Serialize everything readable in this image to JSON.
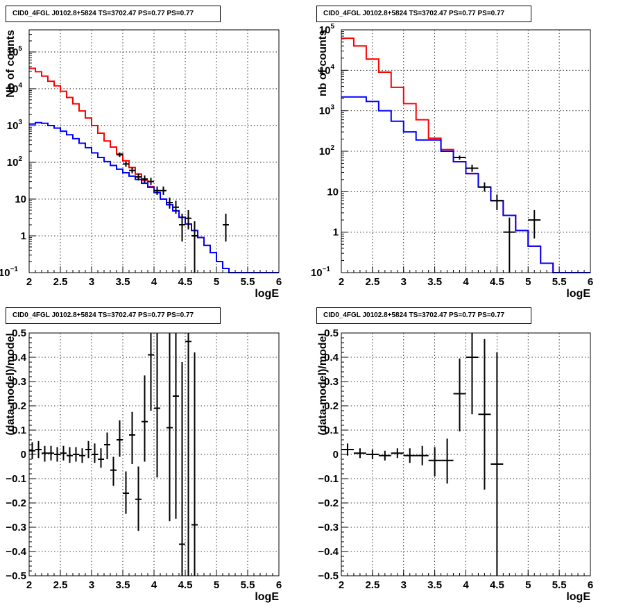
{
  "colors": {
    "data": "#000000",
    "red_model": "#ff0000",
    "blue_model": "#0000ff",
    "grid": "#000000",
    "frame": "#000000"
  },
  "chart_data": [
    {
      "panel": "top-left",
      "type": "histogram",
      "title": "CID0_4FGL J0102.8+5824 TS=3702.47 PS=0.77 PS=0.77",
      "xlabel": "logE",
      "ylabel": "Nb of counts",
      "log_y": true,
      "grid": true,
      "xlim": [
        2,
        6
      ],
      "ylim": [
        0.1,
        400000
      ],
      "x_ticks": [
        "2",
        "2.5",
        "3",
        "3.5",
        "4",
        "4.5",
        "5",
        "5.5",
        "6"
      ],
      "y_ticks": [
        {
          "v": 0.1,
          "label": "10",
          "sup": "−1"
        },
        {
          "v": 1,
          "label": "1",
          "sup": ""
        },
        {
          "v": 10,
          "label": "10",
          "sup": ""
        },
        {
          "v": 100,
          "label": "10",
          "sup": "2"
        },
        {
          "v": 1000,
          "label": "10",
          "sup": "3"
        },
        {
          "v": 10000,
          "label": "10",
          "sup": "4"
        },
        {
          "v": 100000,
          "label": "10",
          "sup": "5"
        }
      ],
      "bin_edges": [
        2.0,
        2.1,
        2.2,
        2.3,
        2.4,
        2.5,
        2.6,
        2.7,
        2.8,
        2.9,
        3.0,
        3.1,
        3.2,
        3.3,
        3.4,
        3.5,
        3.6,
        3.7,
        3.8,
        3.9,
        4.0,
        4.1,
        4.2,
        4.3,
        4.4,
        4.5,
        4.6,
        4.7,
        4.8,
        4.9,
        5.0,
        5.1,
        5.2,
        5.3,
        5.4,
        5.5,
        5.6,
        5.7,
        5.8,
        5.9,
        6.0
      ],
      "series": [
        {
          "color_key": "red_model",
          "values": [
            36000,
            29000,
            22000,
            16000,
            12000,
            8500,
            5800,
            3900,
            2500,
            1600,
            1000,
            620,
            380,
            260,
            170,
            110,
            72,
            48,
            32,
            22,
            15,
            10,
            7,
            4.8,
            3.2,
            2.1,
            1.4,
            0.9,
            0.55,
            0.35,
            0.2,
            0.13,
            0.1,
            0.1,
            0.1,
            0.1,
            0.1,
            0.1,
            0.1,
            0.1
          ]
        },
        {
          "color_key": "blue_model",
          "values": [
            1100,
            1200,
            1150,
            1000,
            850,
            700,
            560,
            440,
            330,
            250,
            180,
            135,
            105,
            82,
            65,
            52,
            42,
            34,
            27,
            21,
            15,
            10,
            7,
            4.8,
            3.2,
            2.1,
            1.4,
            0.9,
            0.55,
            0.35,
            0.2,
            0.13,
            0.1,
            0.1,
            0.1,
            0.1,
            0.1,
            0.1,
            0.1,
            0.1
          ]
        }
      ],
      "points": [
        {
          "x": 3.45,
          "y": 160,
          "xerr": 0.05,
          "lo": 140,
          "hi": 185
        },
        {
          "x": 3.55,
          "y": 90,
          "xerr": 0.05,
          "lo": 75,
          "hi": 105
        },
        {
          "x": 3.65,
          "y": 60,
          "xerr": 0.05,
          "lo": 50,
          "hi": 72
        },
        {
          "x": 3.75,
          "y": 40,
          "xerr": 0.05,
          "lo": 32,
          "hi": 50
        },
        {
          "x": 3.85,
          "y": 35,
          "xerr": 0.05,
          "lo": 28,
          "hi": 44
        },
        {
          "x": 3.95,
          "y": 30,
          "xerr": 0.05,
          "lo": 24,
          "hi": 38
        },
        {
          "x": 4.05,
          "y": 17,
          "xerr": 0.05,
          "lo": 13,
          "hi": 22
        },
        {
          "x": 4.15,
          "y": 17,
          "xerr": 0.05,
          "lo": 13,
          "hi": 22
        },
        {
          "x": 4.25,
          "y": 8,
          "xerr": 0.05,
          "lo": 5.5,
          "hi": 11
        },
        {
          "x": 4.35,
          "y": 6,
          "xerr": 0.05,
          "lo": 4,
          "hi": 9
        },
        {
          "x": 4.45,
          "y": 2,
          "xerr": 0.05,
          "lo": 0.7,
          "hi": 4
        },
        {
          "x": 4.55,
          "y": 3,
          "xerr": 0.05,
          "lo": 1.5,
          "hi": 5
        },
        {
          "x": 4.65,
          "y": 1,
          "xerr": 0.05,
          "lo": 0.1,
          "hi": 2.5
        },
        {
          "x": 5.15,
          "y": 2,
          "xerr": 0.05,
          "lo": 0.7,
          "hi": 4
        }
      ]
    },
    {
      "panel": "top-right",
      "type": "histogram",
      "title": "CID0_4FGL J0102.8+5824 TS=3702.47 PS=0.77 PS=0.77",
      "xlabel": "logE",
      "ylabel": "nb of counts",
      "log_y": true,
      "grid": true,
      "xlim": [
        2,
        6
      ],
      "ylim": [
        0.1,
        100000
      ],
      "x_ticks": [
        "2",
        "2.5",
        "3",
        "3.5",
        "4",
        "4.5",
        "5",
        "5.5",
        "6"
      ],
      "y_ticks": [
        {
          "v": 0.1,
          "label": "10",
          "sup": "−1"
        },
        {
          "v": 1,
          "label": "1",
          "sup": ""
        },
        {
          "v": 10,
          "label": "10",
          "sup": ""
        },
        {
          "v": 100,
          "label": "10",
          "sup": "2"
        },
        {
          "v": 1000,
          "label": "10",
          "sup": "3"
        },
        {
          "v": 10000,
          "label": "10",
          "sup": "4"
        },
        {
          "v": 100000,
          "label": "10",
          "sup": "5"
        }
      ],
      "bin_edges": [
        2.0,
        2.2,
        2.4,
        2.6,
        2.8,
        3.0,
        3.2,
        3.4,
        3.6,
        3.8,
        4.0,
        4.2,
        4.4,
        4.6,
        4.8,
        5.0,
        5.2,
        5.4,
        5.6,
        5.8,
        6.0
      ],
      "series": [
        {
          "color_key": "red_model",
          "values": [
            62000,
            40000,
            19000,
            9000,
            3800,
            1500,
            600,
            210,
            110,
            55,
            28,
            13,
            6,
            2.6,
            1.1,
            0.45,
            0.17,
            0.1,
            0.1,
            0.1
          ]
        },
        {
          "color_key": "blue_model",
          "values": [
            2200,
            2200,
            1700,
            1000,
            550,
            300,
            190,
            190,
            100,
            55,
            28,
            13,
            6,
            2.6,
            1.1,
            0.45,
            0.17,
            0.1,
            0.1,
            0.1
          ]
        }
      ],
      "points": [
        {
          "x": 3.9,
          "y": 70,
          "xerr": 0.1,
          "lo": 62,
          "hi": 78
        },
        {
          "x": 4.1,
          "y": 38,
          "xerr": 0.1,
          "lo": 31,
          "hi": 46
        },
        {
          "x": 4.3,
          "y": 13,
          "xerr": 0.1,
          "lo": 10,
          "hi": 17
        },
        {
          "x": 4.5,
          "y": 6,
          "xerr": 0.1,
          "lo": 3.5,
          "hi": 8.5
        },
        {
          "x": 4.7,
          "y": 1,
          "xerr": 0.1,
          "lo": 0.1,
          "hi": 2.3
        },
        {
          "x": 5.1,
          "y": 2,
          "xerr": 0.1,
          "lo": 0.7,
          "hi": 3.5
        }
      ]
    },
    {
      "panel": "bottom-left",
      "type": "scatter",
      "title": "CID0_4FGL J0102.8+5824 TS=3702.47 PS=0.77 PS=0.77",
      "xlabel": "logE",
      "ylabel": "(data-model)/model",
      "log_y": false,
      "grid": true,
      "xlim": [
        2,
        6
      ],
      "ylim": [
        -0.5,
        0.5
      ],
      "x_ticks": [
        "2",
        "2.5",
        "3",
        "3.5",
        "4",
        "4.5",
        "5",
        "5.5",
        "6"
      ],
      "y_ticks": [
        {
          "v": -0.5,
          "label": "−0.5"
        },
        {
          "v": -0.4,
          "label": "−0.4"
        },
        {
          "v": -0.3,
          "label": "−0.3"
        },
        {
          "v": -0.2,
          "label": "−0.2"
        },
        {
          "v": -0.1,
          "label": "−0.1"
        },
        {
          "v": 0,
          "label": "0"
        },
        {
          "v": 0.1,
          "label": "0.1"
        },
        {
          "v": 0.2,
          "label": "0.2"
        },
        {
          "v": 0.3,
          "label": "0.3"
        },
        {
          "v": 0.4,
          "label": "0.4"
        },
        {
          "v": 0.5,
          "label": "0.5"
        }
      ],
      "points": [
        {
          "x": 2.05,
          "y": 0.015,
          "xerr": 0.05,
          "lo": -0.02,
          "hi": 0.05
        },
        {
          "x": 2.15,
          "y": 0.02,
          "xerr": 0.05,
          "lo": -0.015,
          "hi": 0.055
        },
        {
          "x": 2.25,
          "y": 0.005,
          "xerr": 0.05,
          "lo": -0.03,
          "hi": 0.035
        },
        {
          "x": 2.35,
          "y": 0.005,
          "xerr": 0.05,
          "lo": -0.025,
          "hi": 0.035
        },
        {
          "x": 2.45,
          "y": 0.0,
          "xerr": 0.05,
          "lo": -0.03,
          "hi": 0.03
        },
        {
          "x": 2.55,
          "y": 0.005,
          "xerr": 0.05,
          "lo": -0.025,
          "hi": 0.035
        },
        {
          "x": 2.65,
          "y": -0.005,
          "xerr": 0.05,
          "lo": -0.035,
          "hi": 0.03
        },
        {
          "x": 2.75,
          "y": 0.0,
          "xerr": 0.05,
          "lo": -0.03,
          "hi": 0.03
        },
        {
          "x": 2.85,
          "y": -0.005,
          "xerr": 0.05,
          "lo": -0.035,
          "hi": 0.025
        },
        {
          "x": 2.95,
          "y": 0.02,
          "xerr": 0.05,
          "lo": -0.015,
          "hi": 0.055
        },
        {
          "x": 3.05,
          "y": 0.0,
          "xerr": 0.05,
          "lo": -0.035,
          "hi": 0.045
        },
        {
          "x": 3.15,
          "y": -0.02,
          "xerr": 0.05,
          "lo": -0.055,
          "hi": 0.025
        },
        {
          "x": 3.25,
          "y": 0.04,
          "xerr": 0.05,
          "lo": -0.02,
          "hi": 0.09
        },
        {
          "x": 3.35,
          "y": -0.065,
          "xerr": 0.05,
          "lo": -0.13,
          "hi": -0.01
        },
        {
          "x": 3.45,
          "y": 0.06,
          "xerr": 0.05,
          "lo": -0.01,
          "hi": 0.14
        },
        {
          "x": 3.55,
          "y": -0.16,
          "xerr": 0.05,
          "lo": -0.245,
          "hi": -0.07
        },
        {
          "x": 3.65,
          "y": 0.08,
          "xerr": 0.05,
          "lo": -0.04,
          "hi": 0.175
        },
        {
          "x": 3.75,
          "y": -0.185,
          "xerr": 0.05,
          "lo": -0.315,
          "hi": -0.05
        },
        {
          "x": 3.85,
          "y": 0.135,
          "xerr": 0.05,
          "lo": -0.03,
          "hi": 0.325
        },
        {
          "x": 3.95,
          "y": 0.41,
          "xerr": 0.05,
          "lo": 0.18,
          "hi": 0.5
        },
        {
          "x": 4.05,
          "y": 0.19,
          "xerr": 0.05,
          "lo": -0.095,
          "hi": 0.5
        },
        {
          "x": 4.25,
          "y": 0.11,
          "xerr": 0.05,
          "lo": -0.275,
          "hi": 0.5
        },
        {
          "x": 4.35,
          "y": 0.24,
          "xerr": 0.05,
          "lo": -0.265,
          "hi": 0.5
        },
        {
          "x": 4.45,
          "y": -0.37,
          "xerr": 0.05,
          "lo": -0.5,
          "hi": 0.38
        },
        {
          "x": 4.55,
          "y": 0.465,
          "xerr": 0.05,
          "lo": -0.5,
          "hi": 0.5
        },
        {
          "x": 4.65,
          "y": -0.29,
          "xerr": 0.05,
          "lo": -0.5,
          "hi": 0.42
        }
      ]
    },
    {
      "panel": "bottom-right",
      "type": "scatter",
      "title": "CID0_4FGL J0102.8+5824 TS=3702.47 PS=0.77 PS=0.77",
      "xlabel": "logE",
      "ylabel": "(data-model)/model",
      "log_y": false,
      "grid": true,
      "xlim": [
        2,
        6
      ],
      "ylim": [
        -0.5,
        0.5
      ],
      "x_ticks": [
        "2",
        "2.5",
        "3",
        "3.5",
        "4",
        "4.5",
        "5",
        "5.5",
        "6"
      ],
      "y_ticks": [
        {
          "v": -0.5,
          "label": "−0.5"
        },
        {
          "v": -0.4,
          "label": "−0.4"
        },
        {
          "v": -0.3,
          "label": "−0.3"
        },
        {
          "v": -0.2,
          "label": "−0.2"
        },
        {
          "v": -0.1,
          "label": "−0.1"
        },
        {
          "v": 0,
          "label": "0"
        },
        {
          "v": 0.1,
          "label": "0.1"
        },
        {
          "v": 0.2,
          "label": "0.2"
        },
        {
          "v": 0.3,
          "label": "0.3"
        },
        {
          "v": 0.4,
          "label": "0.4"
        },
        {
          "v": 0.5,
          "label": "0.5"
        }
      ],
      "points": [
        {
          "x": 2.1,
          "y": 0.02,
          "xerr": 0.1,
          "lo": -0.005,
          "hi": 0.045
        },
        {
          "x": 2.3,
          "y": 0.005,
          "xerr": 0.1,
          "lo": -0.015,
          "hi": 0.025
        },
        {
          "x": 2.5,
          "y": 0.0,
          "xerr": 0.1,
          "lo": -0.02,
          "hi": 0.02
        },
        {
          "x": 2.7,
          "y": -0.005,
          "xerr": 0.1,
          "lo": -0.025,
          "hi": 0.015
        },
        {
          "x": 2.9,
          "y": 0.005,
          "xerr": 0.1,
          "lo": -0.015,
          "hi": 0.025
        },
        {
          "x": 3.1,
          "y": -0.005,
          "xerr": 0.1,
          "lo": -0.035,
          "hi": 0.025
        },
        {
          "x": 3.3,
          "y": -0.005,
          "xerr": 0.1,
          "lo": -0.045,
          "hi": 0.035
        },
        {
          "x": 3.5,
          "y": -0.025,
          "xerr": 0.1,
          "lo": -0.09,
          "hi": 0.03
        },
        {
          "x": 3.7,
          "y": -0.025,
          "xerr": 0.1,
          "lo": -0.12,
          "hi": 0.065
        },
        {
          "x": 3.9,
          "y": 0.25,
          "xerr": 0.1,
          "lo": 0.095,
          "hi": 0.395
        },
        {
          "x": 4.1,
          "y": 0.4,
          "xerr": 0.1,
          "lo": 0.165,
          "hi": 0.5
        },
        {
          "x": 4.3,
          "y": 0.165,
          "xerr": 0.1,
          "lo": -0.145,
          "hi": 0.475
        },
        {
          "x": 4.5,
          "y": -0.04,
          "xerr": 0.1,
          "lo": -0.5,
          "hi": 0.42
        }
      ]
    }
  ]
}
